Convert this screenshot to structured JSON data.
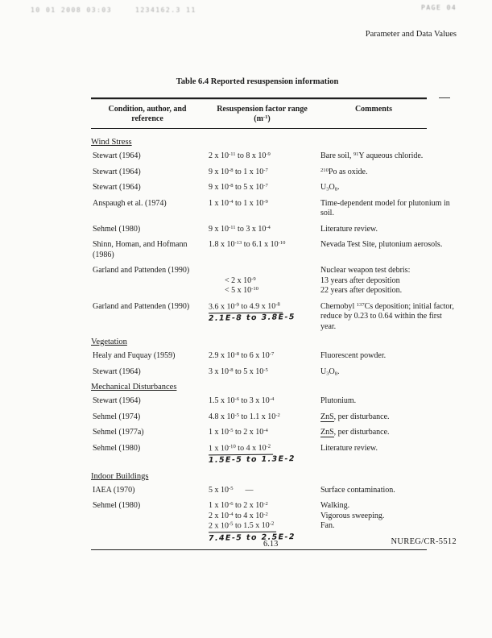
{
  "page": {
    "fax_header": {
      "timestamp": "10 01 2008  03:03",
      "smudge": "1234162.3 11",
      "page_label": "PAGE  04"
    },
    "running_header": "Parameter and Data Values",
    "table_title": "Table 6.4  Reported resuspension information",
    "page_number": "6.13",
    "doc_number": "NUREG/CR-5512"
  },
  "table": {
    "headers": {
      "col1_lines": [
        "Condition, author, and",
        "reference"
      ],
      "col2_lines": [
        "Resuspension factor range",
        "(m^{-1})"
      ],
      "col3_lines": [
        "Comments"
      ]
    },
    "sections": [
      {
        "title": "Wind Stress",
        "rows": [
          {
            "ref": [
              "Stewart (1964)"
            ],
            "range": [
              {
                "t": "2 x 10^{-11} to 8 x 10^{-9}"
              }
            ],
            "comments": [
              "Bare soil, ^{91}Y aqueous chloride."
            ]
          },
          {
            "ref": [
              "Stewart (1964)"
            ],
            "range": [
              {
                "t": "9 x 10^{-8} to 1 x 10^{-7}"
              }
            ],
            "comments": [
              "^{210}Po as oxide."
            ]
          },
          {
            "ref": [
              "Stewart (1964)"
            ],
            "range": [
              {
                "t": "9 x 10^{-8} to 5 x 10^{-7}"
              }
            ],
            "comments": [
              "U_{3}O_{8}."
            ]
          },
          {
            "ref": [
              "Anspaugh et al. (1974)"
            ],
            "range": [
              {
                "t": "1 x 10^{-4} to 1 x 10^{-9}"
              }
            ],
            "comments": [
              "Time-dependent model for plutonium in soil."
            ]
          },
          {
            "ref": [
              "Sehmel (1980)"
            ],
            "range": [
              {
                "t": "9 x 10^{-11} to 3 x 10^{-4}"
              }
            ],
            "comments": [
              "Literature review."
            ]
          },
          {
            "ref": [
              "Shinn, Homan, and Hofmann",
              "(1986)"
            ],
            "range": [
              {
                "t": "1.8 x 10^{-13} to 6.1 x 10^{-10}"
              }
            ],
            "comments": [
              "Nevada Test Site, plutonium aerosols."
            ]
          },
          {
            "ref": [
              "Garland and Pattenden (1990)"
            ],
            "range_offset": 1,
            "range": [
              {
                "t": "< 2 x 10^{-9}",
                "indent": 20
              },
              {
                "t": "< 5 x 10^{-10}",
                "indent": 20
              }
            ],
            "comments": [
              "Nuclear weapon test debris:",
              "13 years after deposition",
              "22 years after deposition."
            ]
          },
          {
            "ref": [
              "Garland and Pattenden (1990)"
            ],
            "range": [
              {
                "t": "3.6 x 10^{-9} to 4.9 x 10^{-8}",
                "u": true
              }
            ],
            "hw": "2.1E-8 to 3.8E-5",
            "comments": [
              "Chernobyl ^{137}Cs deposition; initial factor, reduce by 0.23 to 0.64 within the first year."
            ]
          }
        ]
      },
      {
        "title": "Vegetation",
        "rows": [
          {
            "ref": [
              "Healy and Fuquay (1959)"
            ],
            "range": [
              {
                "t": "2.9 x 10^{-8} to 6 x 10^{-7}"
              }
            ],
            "comments": [
              "Fluorescent powder."
            ]
          },
          {
            "ref": [
              "Stewart (1964)"
            ],
            "range": [
              {
                "t": "3 x 10^{-8} to 5 x 10^{-5}"
              }
            ],
            "comments": [
              "U_{3}O_{8}."
            ]
          }
        ]
      },
      {
        "title": "Mechanical Disturbances",
        "rows": [
          {
            "ref": [
              "Stewart (1964)"
            ],
            "range": [
              {
                "t": "1.5 x 10^{-6} to 3 x 10^{-4}"
              }
            ],
            "comments": [
              "Plutonium."
            ]
          },
          {
            "ref": [
              "Sehmel (1974)"
            ],
            "range": [
              {
                "t": "4.8 x 10^{-5} to 1.1 x 10^{-2}"
              }
            ],
            "comments": [
              "~{ZnS}, per disturbance."
            ]
          },
          {
            "ref": [
              "Sehmel (1977a)"
            ],
            "range": [
              {
                "t": "1 x 10^{-5} to 2 x 10^{-4}"
              }
            ],
            "comments": [
              "~{ZnS}, per disturbance."
            ]
          },
          {
            "ref": [
              "Sehmel (1980)"
            ],
            "range": [
              {
                "t": "1 x 10^{-10} to 4 x 10^{-2}",
                "u": true
              }
            ],
            "hw": "1.5E-5 to 1.3E-2",
            "comments": [
              "Literature review."
            ]
          }
        ]
      },
      {
        "title": "Indoor Buildings",
        "rows": [
          {
            "ref": [
              "IAEA (1970)"
            ],
            "range": [
              {
                "t": "5 x 10^{-5}  —"
              }
            ],
            "comments": [
              "Surface contamination."
            ]
          },
          {
            "ref": [
              "Sehmel (1980)"
            ],
            "range": [
              {
                "t": "1 x 10^{-6} to 2 x 10^{-2}"
              },
              {
                "t": "2 x 10^{-4} to 4 x 10^{-2}"
              },
              {
                "t": "2 x 10^{-5} to 1.5 x 10^{-2}",
                "u": true
              }
            ],
            "hw": "7.4E-5 to 2.5E-2",
            "comments": [
              "Walking.",
              "Vigorous sweeping.",
              "Fan."
            ]
          }
        ]
      }
    ]
  }
}
